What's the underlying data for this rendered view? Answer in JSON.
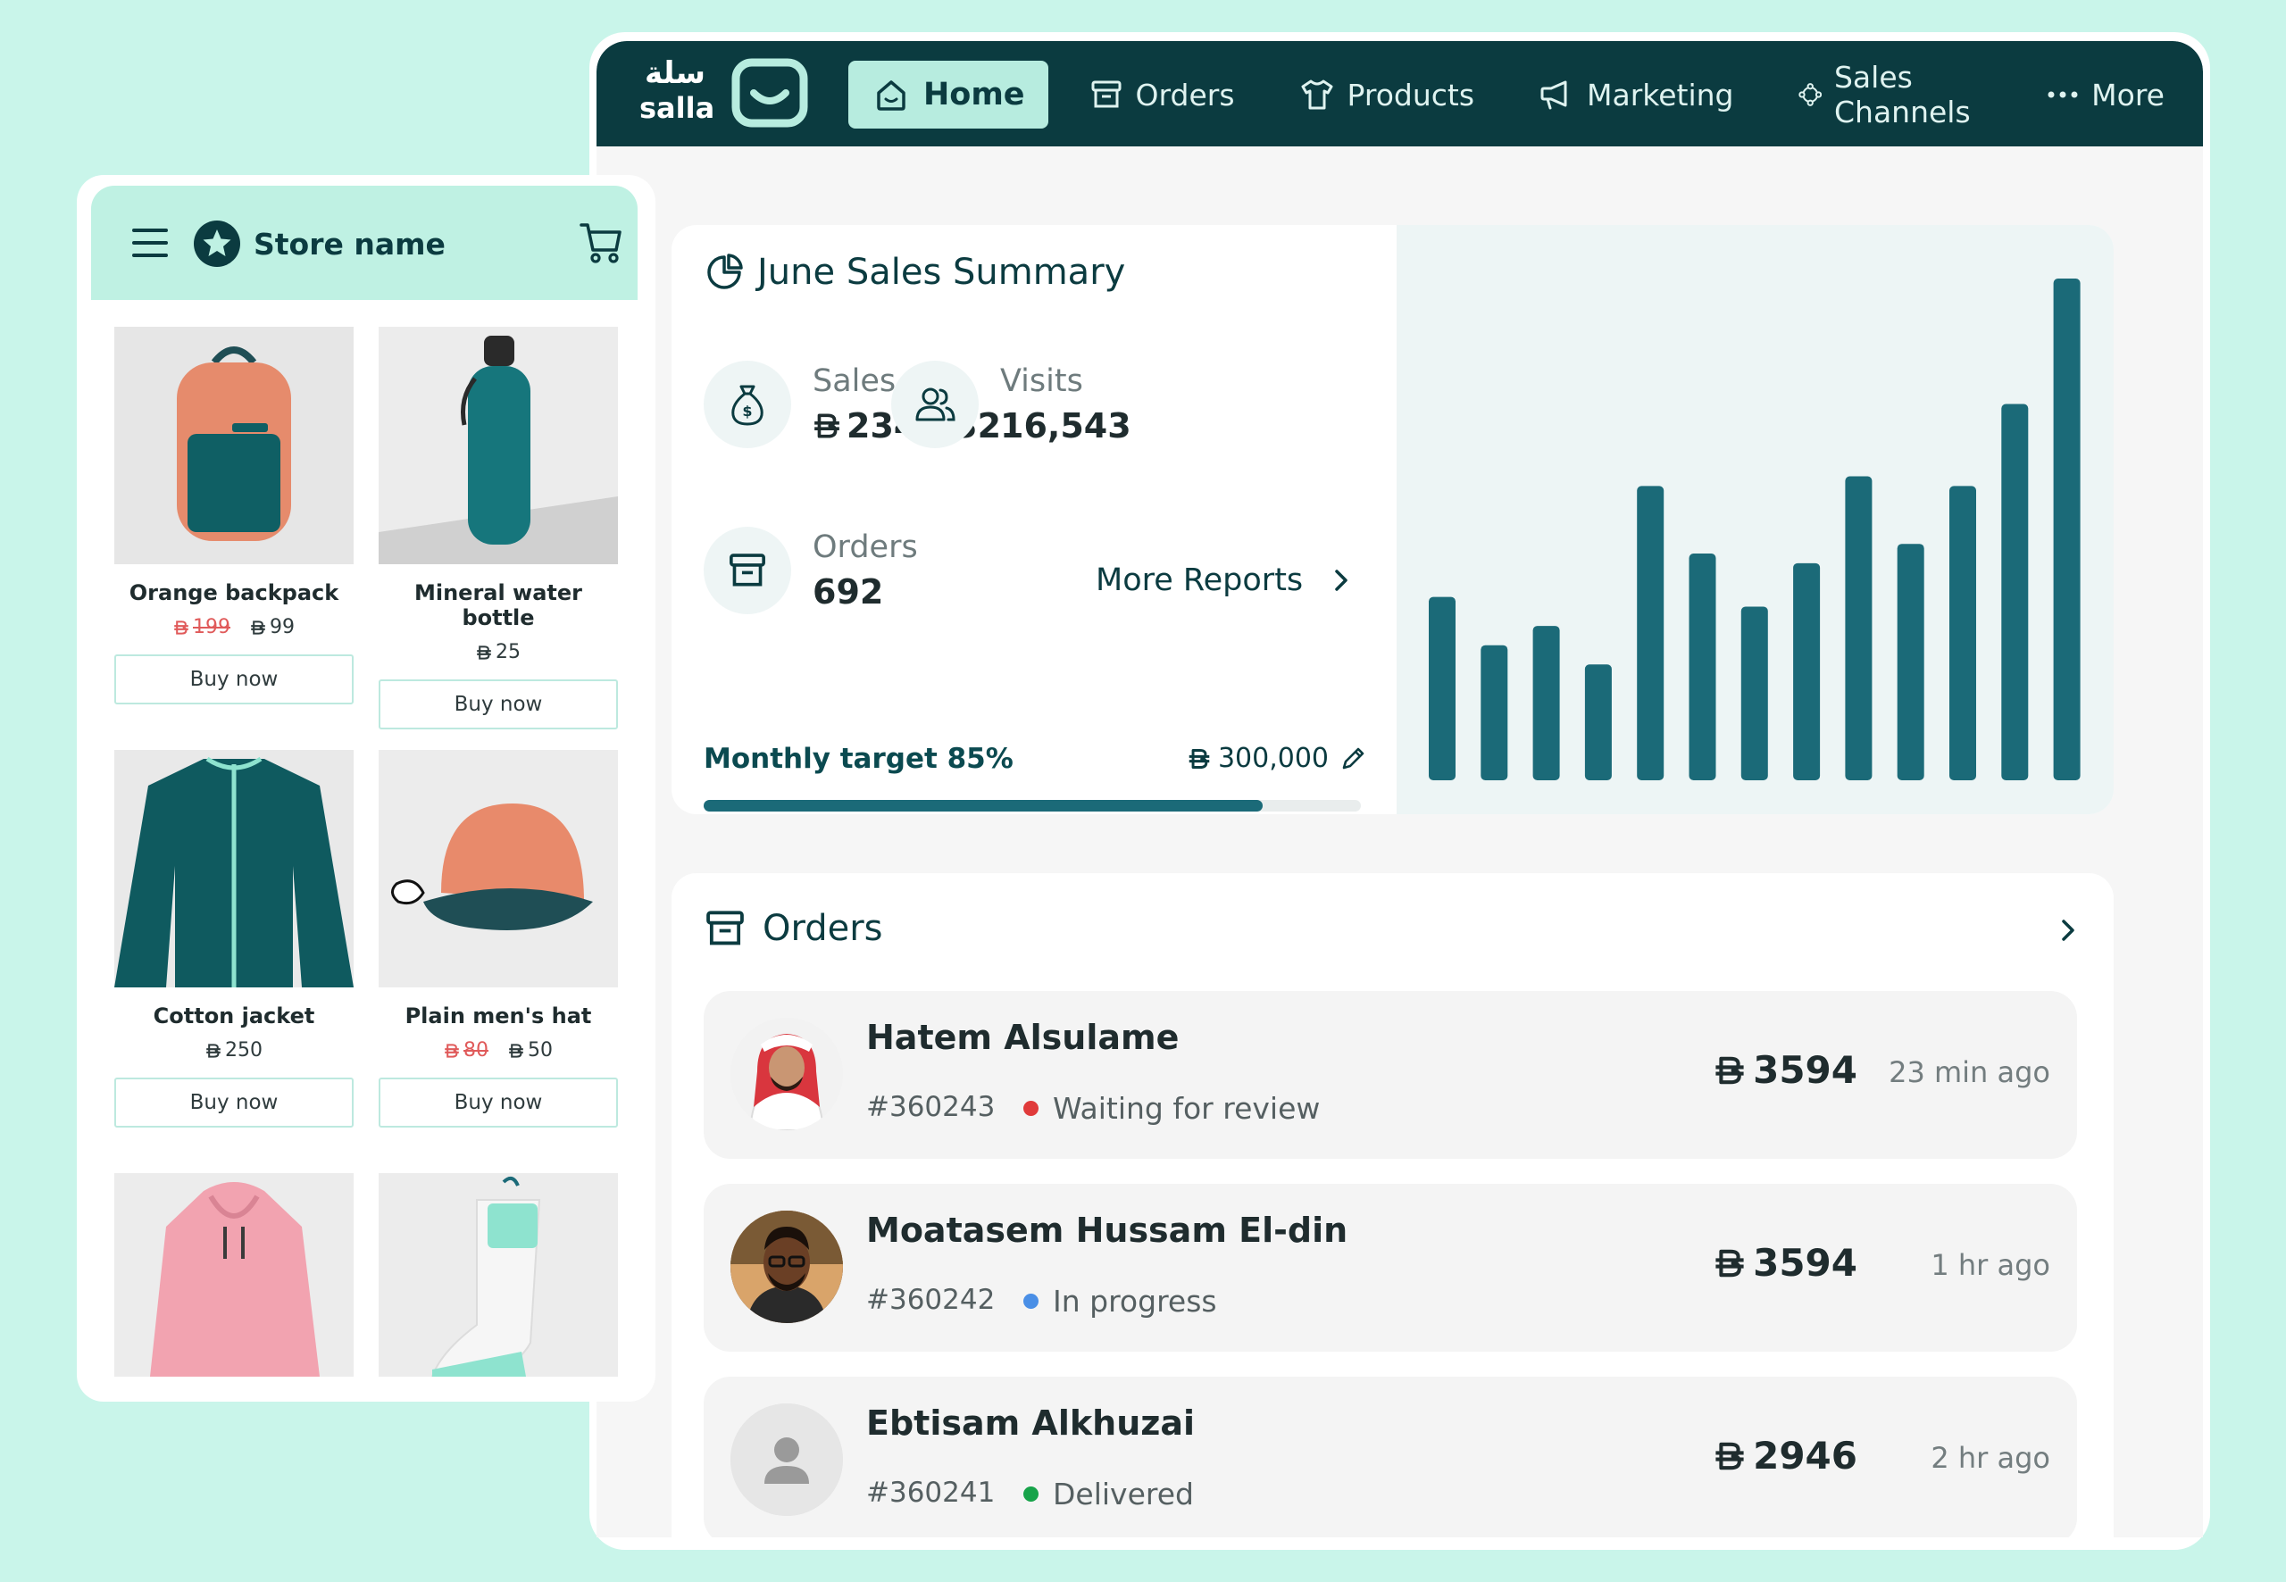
{
  "brand": {
    "logo_ar": "سلة",
    "logo_en": "salla"
  },
  "nav": {
    "items": [
      {
        "label": "Home",
        "icon": "home-icon",
        "active": true
      },
      {
        "label": "Orders",
        "icon": "box-icon"
      },
      {
        "label": "Products",
        "icon": "shirt-icon"
      },
      {
        "label": "Marketing",
        "icon": "megaphone-icon"
      },
      {
        "label": "Sales Channels",
        "icon": "channels-icon"
      },
      {
        "label": "More",
        "icon": "more-dots-icon"
      }
    ]
  },
  "summary": {
    "title": "June Sales Summary",
    "sales_label": "Sales",
    "sales_value": "234,932",
    "visits_label": "Visits",
    "visits_value": "16,543",
    "orders_label": "Orders",
    "orders_value": "692",
    "more_reports": "More Reports",
    "target_label": "Monthly target 85%",
    "target_value": "300,000",
    "target_progress": 0.85
  },
  "chart_data": {
    "type": "bar",
    "values": [
      38,
      28,
      32,
      24,
      61,
      47,
      36,
      45,
      63,
      49,
      61,
      78,
      104
    ]
  },
  "orders": {
    "title": "Orders",
    "rows": [
      {
        "name": "Hatem Alsulame",
        "id": "#360243",
        "status": "Waiting for review",
        "status_color": "#e03a3a",
        "amount": "3594",
        "time": "23 min ago"
      },
      {
        "name": "Moatasem Hussam El-din",
        "id": "#360242",
        "status": "In progress",
        "status_color": "#4a8fe6",
        "amount": "3594",
        "time": "1 hr ago"
      },
      {
        "name": "Ebtisam Alkhuzai",
        "id": "#360241",
        "status": "Delivered",
        "status_color": "#17a34a",
        "amount": "2946",
        "time": "2 hr ago"
      }
    ]
  },
  "store": {
    "name": "Store name",
    "buy_label": "Buy now",
    "products": [
      {
        "name": "Orange backpack",
        "old_price": "199",
        "price": "99"
      },
      {
        "name": "Mineral water bottle",
        "price": "25"
      },
      {
        "name": "Cotton jacket",
        "price": "250"
      },
      {
        "name": "Plain men's hat",
        "old_price": "80",
        "price": "50"
      }
    ]
  },
  "colors": {
    "accent": "#1b6a78",
    "nav_bg": "#0b3b40",
    "mint": "#bff1e3"
  }
}
